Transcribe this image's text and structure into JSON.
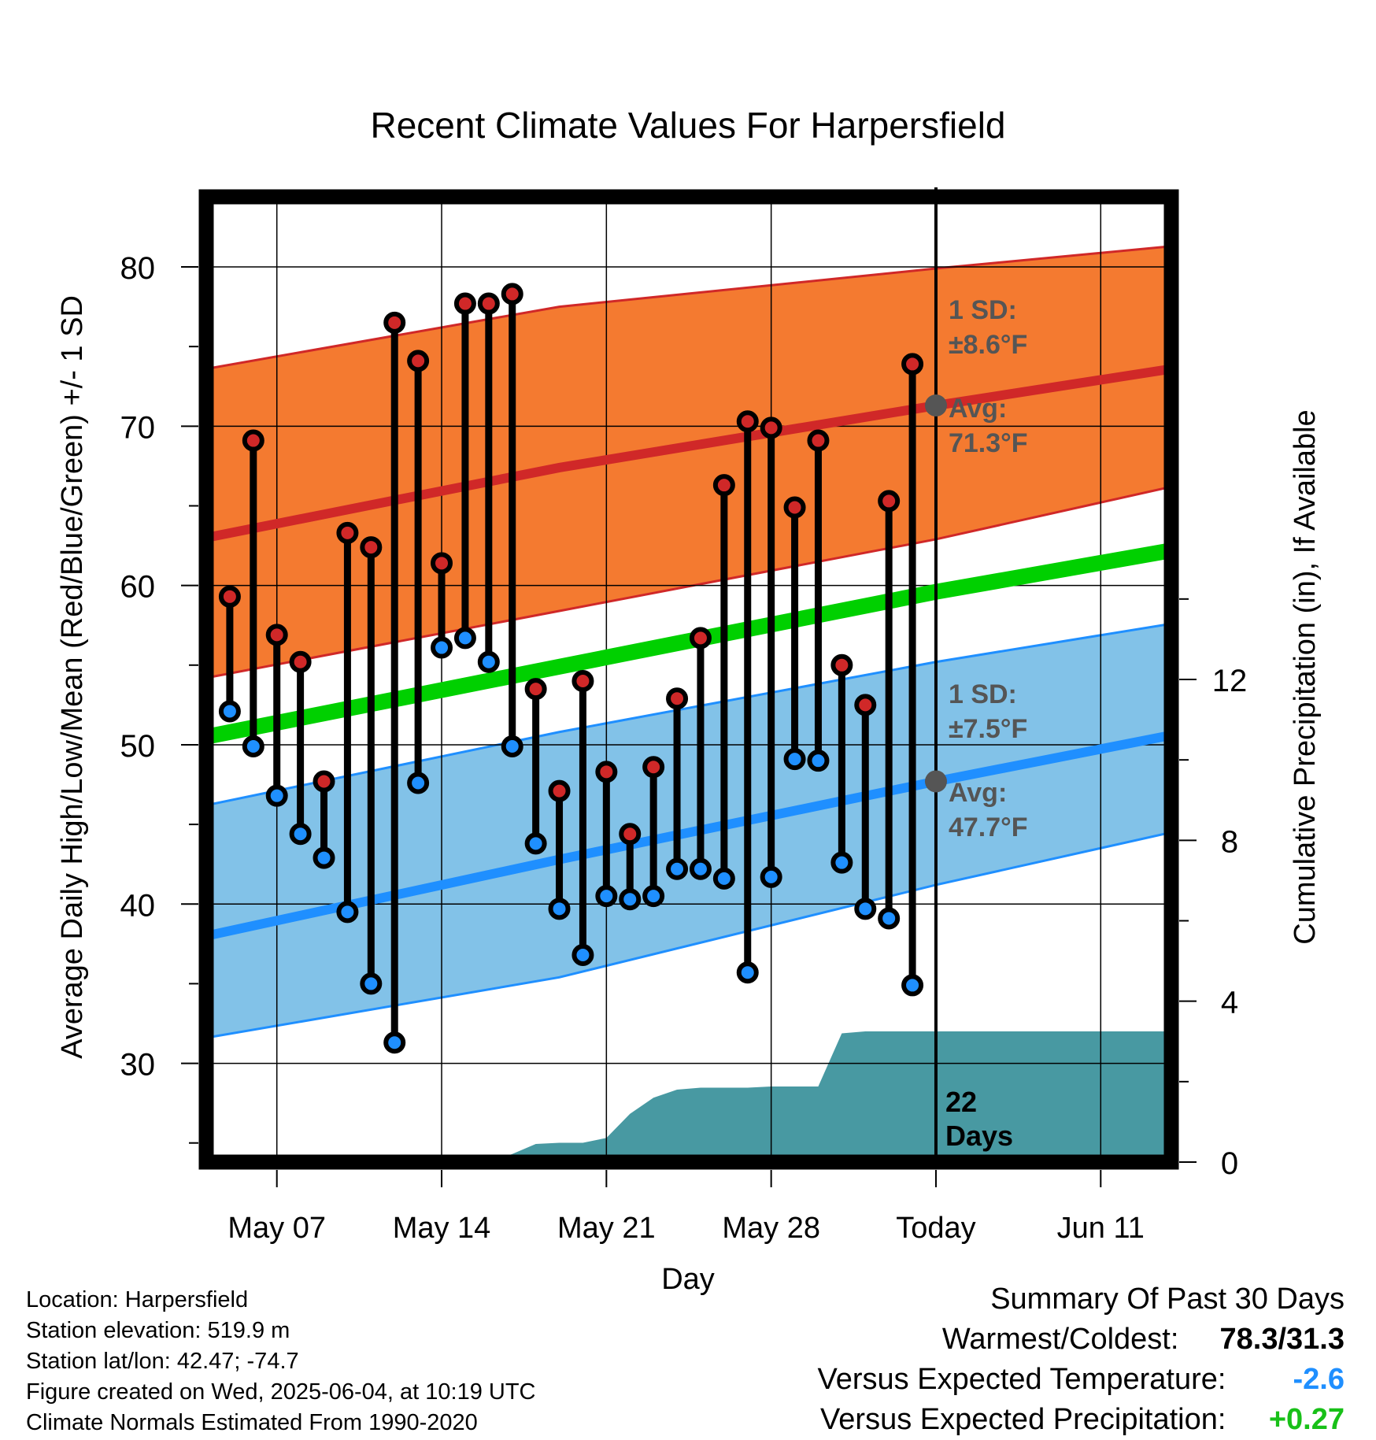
{
  "chart_data": {
    "type": "line",
    "title": "Recent Climate Values For Harpersfield",
    "xlabel": "Day",
    "ylabel": "Average Daily High/Low/Mean (Red/Blue/Green) +/- 1 SD",
    "y2label": "Cumulative Precipitation (in), If Available",
    "xlim": [
      "2025-05-04",
      "2025-06-14"
    ],
    "ylim": [
      23.8,
      84.4
    ],
    "y2lim": [
      0,
      24
    ],
    "grid": true,
    "x_ticks": [
      {
        "date": "2025-05-07",
        "label": "May 07"
      },
      {
        "date": "2025-05-14",
        "label": "May 14"
      },
      {
        "date": "2025-05-21",
        "label": "May 21"
      },
      {
        "date": "2025-05-28",
        "label": "May 28"
      },
      {
        "date": "2025-06-04",
        "label": "Today"
      },
      {
        "date": "2025-06-11",
        "label": "Jun 11"
      }
    ],
    "y_ticks": [
      "30",
      "40",
      "50",
      "60",
      "70",
      "80"
    ],
    "y2_ticks": [
      "0",
      "4",
      "8",
      "12"
    ],
    "today": "2025-06-04",
    "daily_high": {
      "dates": [
        "2025-05-05",
        "2025-05-06",
        "2025-05-07",
        "2025-05-08",
        "2025-05-09",
        "2025-05-10",
        "2025-05-11",
        "2025-05-12",
        "2025-05-13",
        "2025-05-14",
        "2025-05-15",
        "2025-05-16",
        "2025-05-17",
        "2025-05-18",
        "2025-05-19",
        "2025-05-20",
        "2025-05-21",
        "2025-05-22",
        "2025-05-23",
        "2025-05-24",
        "2025-05-25",
        "2025-05-26",
        "2025-05-27",
        "2025-05-28",
        "2025-05-29",
        "2025-05-30",
        "2025-05-31",
        "2025-06-01",
        "2025-06-02",
        "2025-06-03"
      ],
      "values": [
        59.3,
        69.1,
        56.9,
        55.2,
        47.7,
        63.3,
        62.4,
        76.5,
        74.1,
        61.4,
        77.7,
        77.7,
        78.3,
        53.5,
        47.1,
        54.0,
        48.3,
        44.4,
        48.6,
        52.9,
        56.7,
        66.3,
        70.3,
        69.9,
        64.9,
        69.1,
        55.0,
        52.5,
        65.3,
        73.9
      ]
    },
    "daily_low": {
      "dates": [
        "2025-05-05",
        "2025-05-06",
        "2025-05-07",
        "2025-05-08",
        "2025-05-09",
        "2025-05-10",
        "2025-05-11",
        "2025-05-12",
        "2025-05-13",
        "2025-05-14",
        "2025-05-15",
        "2025-05-16",
        "2025-05-17",
        "2025-05-18",
        "2025-05-19",
        "2025-05-20",
        "2025-05-21",
        "2025-05-22",
        "2025-05-23",
        "2025-05-24",
        "2025-05-25",
        "2025-05-26",
        "2025-05-27",
        "2025-05-28",
        "2025-05-29",
        "2025-05-30",
        "2025-05-31",
        "2025-06-01",
        "2025-06-02",
        "2025-06-03"
      ],
      "values": [
        52.1,
        49.9,
        46.8,
        44.4,
        42.9,
        39.5,
        35.0,
        31.3,
        47.6,
        56.1,
        56.7,
        55.2,
        49.9,
        43.8,
        39.7,
        36.8,
        40.5,
        40.3,
        40.5,
        42.2,
        42.2,
        41.6,
        35.7,
        41.7,
        49.1,
        49.0,
        42.6,
        39.7,
        39.1,
        34.9
      ]
    },
    "normals": {
      "dates": [
        "2025-05-04",
        "2025-05-19",
        "2025-06-04",
        "2025-06-14"
      ],
      "high_mean": [
        63.0,
        67.4,
        71.3,
        73.6
      ],
      "high_upper": [
        73.6,
        77.5,
        79.9,
        81.3
      ],
      "high_lower": [
        54.2,
        58.4,
        62.9,
        66.2
      ],
      "low_mean": [
        38.0,
        42.8,
        47.7,
        50.6
      ],
      "low_upper": [
        46.2,
        50.8,
        55.2,
        57.6
      ],
      "low_lower": [
        31.6,
        35.4,
        41.2,
        44.5
      ],
      "avg_mean": [
        50.5,
        54.9,
        59.6,
        62.2
      ]
    },
    "precip_cumulative": {
      "dates": [
        "2025-05-04",
        "2025-05-16",
        "2025-05-17",
        "2025-05-18",
        "2025-05-19",
        "2025-05-20",
        "2025-05-21",
        "2025-05-22",
        "2025-05-23",
        "2025-05-24",
        "2025-05-25",
        "2025-05-26",
        "2025-05-27",
        "2025-05-28",
        "2025-05-29",
        "2025-05-30",
        "2025-05-31",
        "2025-06-01",
        "2025-06-14"
      ],
      "values": [
        0,
        0,
        0.2,
        0.45,
        0.48,
        0.48,
        0.6,
        1.2,
        1.6,
        1.8,
        1.85,
        1.85,
        1.85,
        1.88,
        1.88,
        1.88,
        3.2,
        3.25,
        3.25
      ]
    },
    "annotations": {
      "high_sd_label": "1 SD:",
      "high_sd_value": "±8.6°F",
      "high_avg_label": "Avg:",
      "high_avg_value": "71.3°F",
      "high_avg_marker": 71.3,
      "low_sd_label": "1 SD:",
      "low_sd_value": "±7.5°F",
      "low_avg_label": "Avg:",
      "low_avg_value": "47.7°F",
      "low_avg_marker": 47.7,
      "days_value": "22",
      "days_label": "Days"
    },
    "colors": {
      "high": "#d02828",
      "high_band": "#f47a30",
      "low": "#1f8fff",
      "low_band": "#82c2e8",
      "mean": "#00d000",
      "precip": "#4899a2",
      "annotation": "#555555"
    }
  },
  "footer": {
    "location": "Location: Harpersfield",
    "elevation": "Station elevation: 519.9 m",
    "latlon": "Station lat/lon: 42.47; -74.7",
    "created": "Figure created on Wed, 2025-06-04, at 10:19 UTC",
    "normals": "Climate Normals Estimated From 1990-2020"
  },
  "summary": {
    "title": "Summary Of Past 30 Days",
    "warmest_label": "Warmest/Coldest:",
    "warmest_value": "78.3/31.3",
    "temp_label": "Versus Expected Temperature:",
    "temp_value": "-2.6",
    "temp_color": "#1f8fff",
    "precip_label": "Versus Expected Precipitation:",
    "precip_value": "+0.27",
    "precip_color": "#18c018"
  }
}
